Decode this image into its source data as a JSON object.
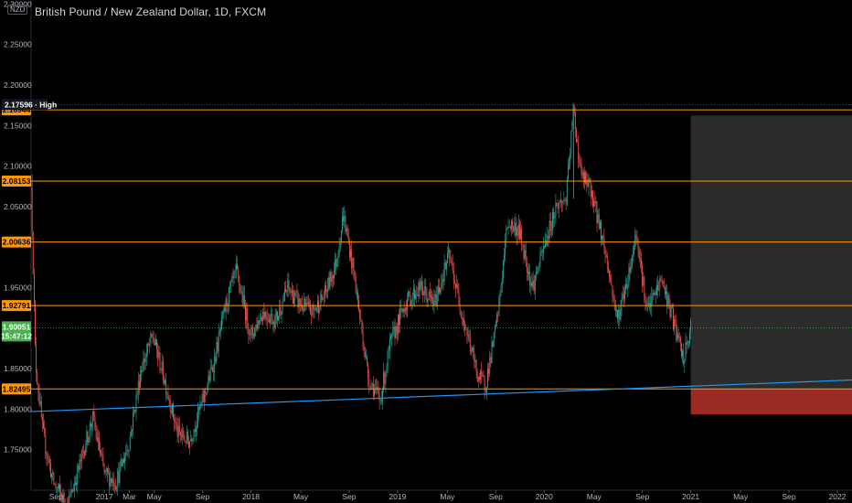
{
  "header": {
    "title": "British Pound / New Zealand Dollar, 1D, FXCM",
    "currency_badge": "NZD"
  },
  "colors": {
    "background": "#000000",
    "up": "#26a69a",
    "down": "#ef5350",
    "support_line": "#ff9800",
    "trend_line": "#2196f3",
    "projection_box": "#2b2b2b",
    "stop_box": "#9b2a25",
    "price_tag": "#4caf50"
  },
  "chart_data": {
    "type": "candlestick",
    "title": "British Pound / New Zealand Dollar, 1D, FXCM",
    "ylim": [
      1.7,
      2.305
    ],
    "y_ticks": [
      2.3,
      2.25,
      2.2,
      2.15,
      2.1,
      2.05,
      1.95,
      1.85,
      1.8,
      1.75
    ],
    "x_tick_labels": [
      "Sep",
      "2017",
      "Mar",
      "May",
      "Sep",
      "2018",
      "May",
      "Sep",
      "2019",
      "May",
      "Sep",
      "2020",
      "May",
      "Sep",
      "2021",
      "May",
      "Sep",
      "2022"
    ],
    "x_tick_years": [
      2016.67,
      2017.0,
      2017.17,
      2017.34,
      2017.67,
      2018.0,
      2018.34,
      2018.67,
      2019.0,
      2019.34,
      2019.67,
      2020.0,
      2020.34,
      2020.67,
      2021.0,
      2021.34,
      2021.67,
      2022.0
    ],
    "x_range_years": [
      2016.5,
      2022.1
    ],
    "price_path": [
      [
        2016.5,
        2.08
      ],
      [
        2016.53,
        1.86
      ],
      [
        2016.58,
        1.77
      ],
      [
        2016.65,
        1.71
      ],
      [
        2016.75,
        1.68
      ],
      [
        2016.83,
        1.73
      ],
      [
        2016.92,
        1.79
      ],
      [
        2017.0,
        1.72
      ],
      [
        2017.08,
        1.71
      ],
      [
        2017.17,
        1.76
      ],
      [
        2017.25,
        1.85
      ],
      [
        2017.33,
        1.89
      ],
      [
        2017.42,
        1.83
      ],
      [
        2017.5,
        1.77
      ],
      [
        2017.58,
        1.76
      ],
      [
        2017.67,
        1.81
      ],
      [
        2017.75,
        1.86
      ],
      [
        2017.83,
        1.93
      ],
      [
        2017.9,
        1.97
      ],
      [
        2018.0,
        1.89
      ],
      [
        2018.08,
        1.92
      ],
      [
        2018.17,
        1.91
      ],
      [
        2018.25,
        1.95
      ],
      [
        2018.33,
        1.93
      ],
      [
        2018.42,
        1.92
      ],
      [
        2018.5,
        1.94
      ],
      [
        2018.58,
        1.98
      ],
      [
        2018.63,
        2.04
      ],
      [
        2018.7,
        1.97
      ],
      [
        2018.8,
        1.84
      ],
      [
        2018.88,
        1.81
      ],
      [
        2018.95,
        1.88
      ],
      [
        2019.05,
        1.93
      ],
      [
        2019.15,
        1.95
      ],
      [
        2019.25,
        1.93
      ],
      [
        2019.35,
        1.99
      ],
      [
        2019.45,
        1.91
      ],
      [
        2019.55,
        1.84
      ],
      [
        2019.6,
        1.83
      ],
      [
        2019.68,
        1.91
      ],
      [
        2019.75,
        2.03
      ],
      [
        2019.83,
        2.02
      ],
      [
        2019.92,
        1.95
      ],
      [
        2020.0,
        2.0
      ],
      [
        2020.08,
        2.05
      ],
      [
        2020.15,
        2.06
      ],
      [
        2020.2,
        2.17
      ],
      [
        2020.25,
        2.09
      ],
      [
        2020.32,
        2.07
      ],
      [
        2020.4,
        2.01
      ],
      [
        2020.5,
        1.91
      ],
      [
        2020.58,
        1.97
      ],
      [
        2020.63,
        2.02
      ],
      [
        2020.7,
        1.92
      ],
      [
        2020.8,
        1.96
      ],
      [
        2020.88,
        1.91
      ],
      [
        2020.95,
        1.86
      ],
      [
        2021.0,
        1.9
      ]
    ],
    "support_lines": [
      {
        "value": 2.16944,
        "label": "2.16944"
      },
      {
        "value": 2.08153,
        "label": "2.08153"
      },
      {
        "value": 2.00636,
        "label": "2.00636"
      },
      {
        "value": 1.92791,
        "label": "1.92791"
      },
      {
        "value": 1.82495,
        "label": "1.82495"
      }
    ],
    "high_marker": {
      "value": 2.17596,
      "label": "2.17596 · High"
    },
    "last_price": {
      "value": 1.90051,
      "label": "1.90051",
      "countdown": "15:47:12"
    },
    "trend_line": {
      "start": [
        2016.5,
        1.797
      ],
      "end": [
        2022.1,
        1.836
      ]
    },
    "projection_box": {
      "x_start": 2021.0,
      "x_end": 2022.1,
      "y_top": 2.1625,
      "y_bottom": 1.82495
    },
    "stop_box": {
      "x_start": 2021.0,
      "x_end": 2022.1,
      "y_top": 1.82495,
      "y_bottom": 1.7935
    }
  }
}
